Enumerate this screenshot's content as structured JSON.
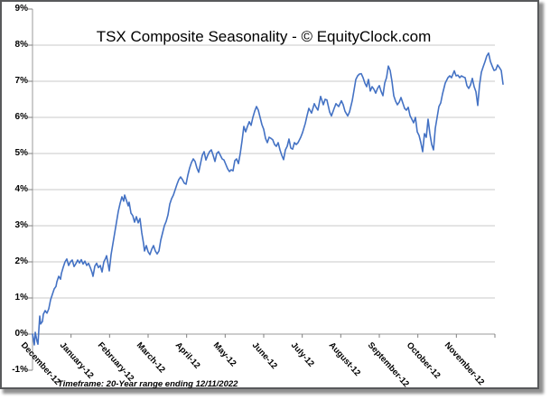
{
  "title": "TSX Composite Seasonality - © EquityClock.com",
  "footnote": "Timeframe: 20-Year range ending 12/11/2022",
  "colors": {
    "line": "#4472C4",
    "gridline": "#C8C8C8",
    "axis": "#9B9B9B",
    "tick": "#808080",
    "text": "#000000",
    "frame_border": "#58595B",
    "frame_shadow": "#8F8F8F",
    "background": "#FFFFFF"
  },
  "chart_data": {
    "type": "line",
    "title": "TSX Composite Seasonality - © EquityClock.com",
    "subtitle": "Timeframe: 20-Year range ending 12/11/2022",
    "x_categories": [
      "December-12",
      "January-12",
      "February-12",
      "March-12",
      "April-12",
      "May-12",
      "June-12",
      "July-12",
      "August-12",
      "September-12",
      "October-12",
      "November-12"
    ],
    "y_tick_labels": [
      "9%",
      "8%",
      "7%",
      "6%",
      "5%",
      "4%",
      "3%",
      "2%",
      "1%",
      "0%",
      "-1%"
    ],
    "y_tick_values": [
      9,
      8,
      7,
      6,
      5,
      4,
      3,
      2,
      1,
      0,
      -1
    ],
    "gridline_values": [
      8,
      7,
      6,
      5,
      4,
      3,
      2,
      1
    ],
    "ylim": [
      -1,
      9
    ],
    "ylabel_unit": "percent cumulative gain",
    "grid": "horizontal",
    "legend": "none",
    "x_unit": "plot_px (Dec 1 at px 36, ~42.67 px per month)",
    "series": [
      {
        "name": "TSX Composite 20-year seasonal average",
        "color": "#4472C4",
        "points": [
          [
            36,
            0.0
          ],
          [
            37,
            -0.15
          ],
          [
            38,
            -0.3
          ],
          [
            39,
            0.05
          ],
          [
            41,
            -0.2
          ],
          [
            42,
            -0.28
          ],
          [
            44,
            0.5
          ],
          [
            45,
            0.28
          ],
          [
            47,
            0.35
          ],
          [
            48,
            0.55
          ],
          [
            50,
            0.65
          ],
          [
            52,
            0.58
          ],
          [
            54,
            0.7
          ],
          [
            56,
            0.95
          ],
          [
            58,
            1.1
          ],
          [
            60,
            1.25
          ],
          [
            62,
            1.32
          ],
          [
            63,
            1.45
          ],
          [
            65,
            1.6
          ],
          [
            67,
            1.52
          ],
          [
            68,
            1.68
          ],
          [
            70,
            1.85
          ],
          [
            72,
            2.0
          ],
          [
            74,
            2.08
          ],
          [
            76,
            1.9
          ],
          [
            78,
            2.0
          ],
          [
            80,
            2.05
          ],
          [
            82,
            1.87
          ],
          [
            84,
            1.95
          ],
          [
            86,
            2.05
          ],
          [
            88,
            1.97
          ],
          [
            90,
            2.06
          ],
          [
            92,
            1.94
          ],
          [
            94,
            2.02
          ],
          [
            96,
            1.9
          ],
          [
            98,
            1.96
          ],
          [
            100,
            1.84
          ],
          [
            102,
            1.7
          ],
          [
            103,
            1.6
          ],
          [
            105,
            1.88
          ],
          [
            107,
            1.96
          ],
          [
            109,
            1.84
          ],
          [
            111,
            1.9
          ],
          [
            113,
            1.72
          ],
          [
            115,
            2.0
          ],
          [
            117,
            2.1
          ],
          [
            118,
            2.17
          ],
          [
            120,
            1.9
          ],
          [
            121,
            1.75
          ],
          [
            123,
            2.2
          ],
          [
            125,
            2.5
          ],
          [
            127,
            2.8
          ],
          [
            129,
            3.1
          ],
          [
            131,
            3.4
          ],
          [
            133,
            3.62
          ],
          [
            135,
            3.8
          ],
          [
            137,
            3.68
          ],
          [
            138,
            3.85
          ],
          [
            140,
            3.7
          ],
          [
            142,
            3.55
          ],
          [
            143,
            3.65
          ],
          [
            145,
            3.35
          ],
          [
            147,
            3.28
          ],
          [
            149,
            3.1
          ],
          [
            151,
            3.25
          ],
          [
            153,
            3.08
          ],
          [
            155,
            3.2
          ],
          [
            157,
            2.8
          ],
          [
            159,
            2.5
          ],
          [
            160,
            2.3
          ],
          [
            162,
            2.45
          ],
          [
            164,
            2.28
          ],
          [
            166,
            2.2
          ],
          [
            168,
            2.35
          ],
          [
            170,
            2.45
          ],
          [
            172,
            2.3
          ],
          [
            174,
            2.22
          ],
          [
            176,
            2.3
          ],
          [
            178,
            2.6
          ],
          [
            180,
            2.8
          ],
          [
            182,
            3.0
          ],
          [
            184,
            3.12
          ],
          [
            186,
            3.3
          ],
          [
            188,
            3.6
          ],
          [
            190,
            3.75
          ],
          [
            192,
            3.85
          ],
          [
            194,
            4.0
          ],
          [
            196,
            4.15
          ],
          [
            198,
            4.28
          ],
          [
            200,
            4.35
          ],
          [
            202,
            4.28
          ],
          [
            204,
            4.18
          ],
          [
            206,
            4.15
          ],
          [
            208,
            4.4
          ],
          [
            210,
            4.6
          ],
          [
            212,
            4.75
          ],
          [
            214,
            4.85
          ],
          [
            216,
            4.78
          ],
          [
            218,
            4.6
          ],
          [
            220,
            4.48
          ],
          [
            222,
            4.72
          ],
          [
            224,
            4.95
          ],
          [
            226,
            5.05
          ],
          [
            228,
            4.82
          ],
          [
            230,
            4.95
          ],
          [
            232,
            5.05
          ],
          [
            234,
            5.1
          ],
          [
            236,
            4.95
          ],
          [
            238,
            4.78
          ],
          [
            240,
            5.0
          ],
          [
            242,
            5.05
          ],
          [
            244,
            4.95
          ],
          [
            246,
            4.85
          ],
          [
            248,
            4.82
          ],
          [
            250,
            4.7
          ],
          [
            252,
            4.58
          ],
          [
            254,
            4.5
          ],
          [
            256,
            4.55
          ],
          [
            258,
            4.52
          ],
          [
            260,
            4.8
          ],
          [
            262,
            4.85
          ],
          [
            264,
            4.72
          ],
          [
            266,
            5.0
          ],
          [
            268,
            5.35
          ],
          [
            270,
            5.75
          ],
          [
            272,
            5.6
          ],
          [
            274,
            5.75
          ],
          [
            276,
            5.88
          ],
          [
            278,
            5.78
          ],
          [
            280,
            6.0
          ],
          [
            282,
            6.17
          ],
          [
            284,
            6.3
          ],
          [
            286,
            6.2
          ],
          [
            288,
            6.0
          ],
          [
            290,
            5.8
          ],
          [
            292,
            5.67
          ],
          [
            294,
            5.42
          ],
          [
            296,
            5.3
          ],
          [
            298,
            5.45
          ],
          [
            300,
            5.42
          ],
          [
            302,
            5.38
          ],
          [
            304,
            5.25
          ],
          [
            306,
            5.2
          ],
          [
            308,
            5.3
          ],
          [
            310,
            5.1
          ],
          [
            312,
            4.95
          ],
          [
            314,
            4.83
          ],
          [
            316,
            5.1
          ],
          [
            318,
            5.2
          ],
          [
            320,
            5.4
          ],
          [
            322,
            5.15
          ],
          [
            324,
            5.12
          ],
          [
            326,
            5.3
          ],
          [
            328,
            5.25
          ],
          [
            330,
            5.3
          ],
          [
            333,
            5.45
          ],
          [
            335,
            5.58
          ],
          [
            338,
            5.83
          ],
          [
            340,
            6.05
          ],
          [
            342,
            6.25
          ],
          [
            345,
            6.12
          ],
          [
            348,
            6.38
          ],
          [
            350,
            6.28
          ],
          [
            352,
            6.2
          ],
          [
            355,
            6.58
          ],
          [
            358,
            6.35
          ],
          [
            360,
            6.5
          ],
          [
            362,
            6.48
          ],
          [
            365,
            6.15
          ],
          [
            367,
            6.04
          ],
          [
            370,
            6.25
          ],
          [
            372,
            6.38
          ],
          [
            375,
            6.3
          ],
          [
            378,
            6.46
          ],
          [
            380,
            6.35
          ],
          [
            382,
            6.17
          ],
          [
            385,
            6.04
          ],
          [
            387,
            6.15
          ],
          [
            390,
            6.46
          ],
          [
            392,
            6.75
          ],
          [
            394,
            7.05
          ],
          [
            396,
            7.15
          ],
          [
            398,
            7.2
          ],
          [
            400,
            7.21
          ],
          [
            402,
            7.1
          ],
          [
            404,
            6.95
          ],
          [
            406,
            6.85
          ],
          [
            408,
            7.05
          ],
          [
            410,
            6.73
          ],
          [
            412,
            6.85
          ],
          [
            414,
            6.78
          ],
          [
            416,
            6.67
          ],
          [
            418,
            6.8
          ],
          [
            420,
            6.88
          ],
          [
            422,
            6.72
          ],
          [
            424,
            6.6
          ],
          [
            426,
            6.95
          ],
          [
            428,
            7.1
          ],
          [
            430,
            7.42
          ],
          [
            432,
            7.3
          ],
          [
            434,
            7.0
          ],
          [
            436,
            6.6
          ],
          [
            438,
            6.45
          ],
          [
            440,
            6.35
          ],
          [
            442,
            6.42
          ],
          [
            444,
            6.55
          ],
          [
            446,
            6.4
          ],
          [
            448,
            6.25
          ],
          [
            450,
            6.2
          ],
          [
            452,
            6.28
          ],
          [
            454,
            6.05
          ],
          [
            456,
            5.95
          ],
          [
            458,
            5.85
          ],
          [
            460,
            6.0
          ],
          [
            462,
            5.6
          ],
          [
            464,
            5.5
          ],
          [
            466,
            5.3
          ],
          [
            468,
            5.05
          ],
          [
            470,
            5.55
          ],
          [
            472,
            5.45
          ],
          [
            474,
            5.95
          ],
          [
            476,
            5.55
          ],
          [
            478,
            5.25
          ],
          [
            480,
            5.1
          ],
          [
            482,
            5.7
          ],
          [
            484,
            6.0
          ],
          [
            486,
            6.3
          ],
          [
            488,
            6.4
          ],
          [
            490,
            6.65
          ],
          [
            493,
            6.95
          ],
          [
            496,
            7.1
          ],
          [
            498,
            7.15
          ],
          [
            500,
            7.1
          ],
          [
            503,
            7.29
          ],
          [
            505,
            7.15
          ],
          [
            507,
            7.17
          ],
          [
            509,
            7.1
          ],
          [
            511,
            7.15
          ],
          [
            513,
            7.12
          ],
          [
            515,
            7.1
          ],
          [
            517,
            6.88
          ],
          [
            519,
            6.8
          ],
          [
            521,
            6.9
          ],
          [
            523,
            7.08
          ],
          [
            525,
            6.85
          ],
          [
            527,
            6.71
          ],
          [
            529,
            6.33
          ],
          [
            531,
            6.9
          ],
          [
            533,
            7.25
          ],
          [
            535,
            7.4
          ],
          [
            537,
            7.54
          ],
          [
            539,
            7.7
          ],
          [
            541,
            7.78
          ],
          [
            543,
            7.55
          ],
          [
            545,
            7.42
          ],
          [
            547,
            7.3
          ],
          [
            549,
            7.32
          ],
          [
            551,
            7.45
          ],
          [
            553,
            7.38
          ],
          [
            555,
            7.3
          ],
          [
            557,
            6.92
          ]
        ]
      }
    ]
  }
}
